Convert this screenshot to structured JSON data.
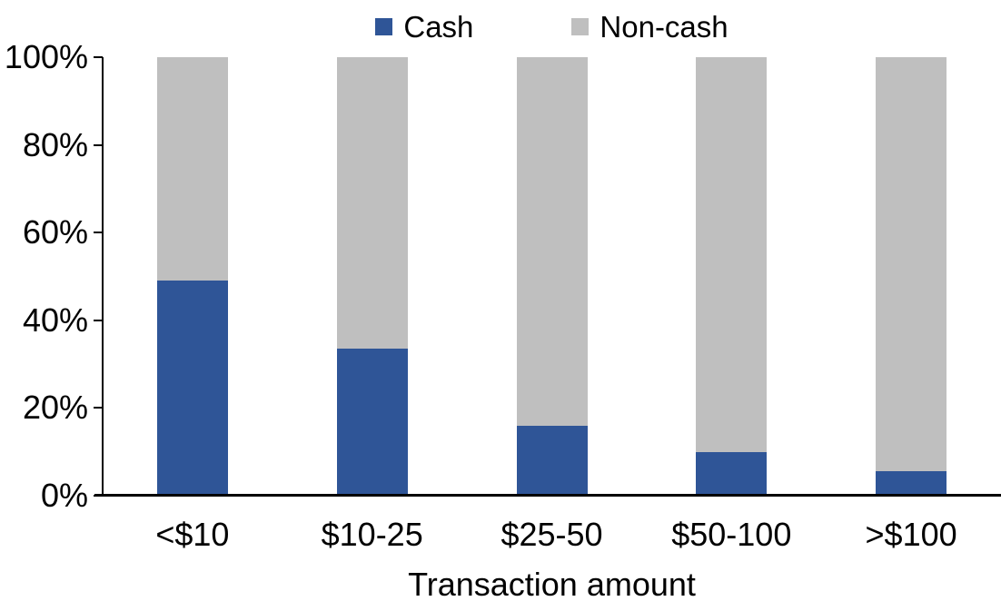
{
  "chart_data": {
    "type": "bar",
    "stacked": true,
    "stacked_unit": "percent",
    "title": "",
    "xlabel": "Transaction amount",
    "ylabel": "",
    "ylim": [
      0,
      100
    ],
    "yticks": [
      "0%",
      "20%",
      "40%",
      "60%",
      "80%",
      "100%"
    ],
    "ytick_values": [
      0,
      20,
      40,
      60,
      80,
      100
    ],
    "grid": false,
    "legend_position": "top-center",
    "categories": [
      "<$10",
      "$10-25",
      "$25-50",
      "$50-100",
      ">$100"
    ],
    "series": [
      {
        "name": "Cash",
        "color": "#2F5597",
        "values": [
          49,
          33.5,
          16,
          10,
          5.5
        ]
      },
      {
        "name": "Non-cash",
        "color": "#BFBFBF",
        "values": [
          51,
          66.5,
          84,
          90,
          94.5
        ]
      }
    ]
  },
  "colors": {
    "cash": "#2F5597",
    "noncash": "#BFBFBF",
    "axis": "#000000",
    "background": "#FFFFFF"
  }
}
